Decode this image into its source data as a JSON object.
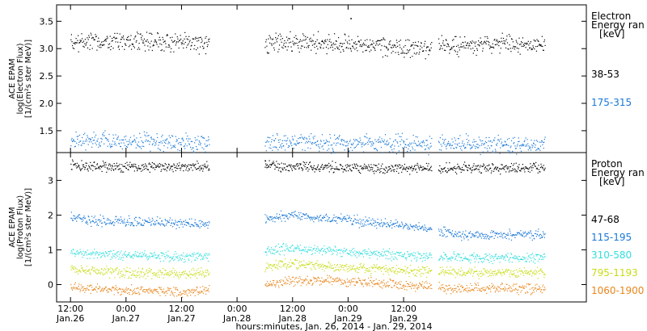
{
  "chart_data": [
    {
      "type": "scatter",
      "panel": "electron",
      "ylabel_lines": [
        "ACE EPAM",
        "log(Electron Flux)",
        "[1/(cm²s ster MeV)]"
      ],
      "ylim": [
        1.1,
        3.8
      ],
      "yticks": [
        1.5,
        2.0,
        2.5,
        3.0,
        3.5
      ],
      "ytick_labels": [
        "1.5",
        "2.0",
        "2.5",
        "3.0",
        "3.5"
      ],
      "legend_title": [
        "Electron",
        "Energy ran",
        "[keV]"
      ],
      "series": [
        {
          "name": "38-53",
          "color": "#000000",
          "x_hours": [
            0,
            6,
            12,
            18,
            24,
            30,
            36,
            42,
            48,
            54,
            60,
            66,
            72,
            78,
            84
          ],
          "segments": [
            [
              0,
              30
            ],
            [
              42,
              78
            ],
            [
              79.5,
              102.5
            ]
          ],
          "y": [
            3.12,
            3.13,
            3.14,
            3.13,
            3.12,
            3.11,
            3.1,
            3.11,
            3.12,
            3.11,
            3.1,
            3.06,
            3.0,
            3.04,
            3.07
          ],
          "outliers": [
            [
              60.5,
              3.56
            ]
          ]
        },
        {
          "name": "175-315",
          "color": "#1a78d6",
          "x_hours": [
            0,
            12,
            24,
            36,
            48,
            60,
            72,
            84
          ],
          "segments": [
            [
              0,
              30
            ],
            [
              42,
              78
            ],
            [
              79.5,
              102.5
            ]
          ],
          "y": [
            1.33,
            1.3,
            1.29,
            1.28,
            1.29,
            1.27,
            1.26,
            1.26
          ],
          "outliers": []
        }
      ]
    },
    {
      "type": "scatter",
      "panel": "proton",
      "ylabel_lines": [
        "ACE EPAM",
        "log(Proton Flux)",
        "[1/(cm²s ster MeV)]"
      ],
      "ylim": [
        -0.5,
        3.8
      ],
      "yticks": [
        0,
        1,
        2,
        3
      ],
      "ytick_labels": [
        "0",
        "1",
        "2",
        "3"
      ],
      "legend_title": [
        "Proton",
        "Energy ran",
        "[keV]"
      ],
      "series": [
        {
          "name": "47-68",
          "color": "#000000",
          "x_hours": [
            0,
            12,
            24,
            36,
            48,
            60,
            72,
            84
          ],
          "segments": [
            [
              0,
              30
            ],
            [
              42,
              78
            ],
            [
              79.5,
              102.5
            ]
          ],
          "y": [
            3.42,
            3.4,
            3.39,
            3.4,
            3.41,
            3.38,
            3.35,
            3.36
          ],
          "outliers": [
            [
              42,
              3.58
            ]
          ]
        },
        {
          "name": "115-195",
          "color": "#1a78d6",
          "x_hours": [
            0,
            6,
            12,
            18,
            24,
            30,
            36,
            42,
            48,
            54,
            60,
            66,
            72,
            78,
            84
          ],
          "segments": [
            [
              0,
              30
            ],
            [
              42,
              78
            ],
            [
              79.5,
              102.5
            ]
          ],
          "y": [
            1.95,
            1.85,
            1.8,
            1.82,
            1.78,
            1.75,
            1.78,
            1.9,
            2.0,
            1.92,
            1.85,
            1.8,
            1.7,
            1.58,
            1.45
          ],
          "outliers": []
        },
        {
          "name": "310-580",
          "color": "#33dede",
          "x_hours": [
            0,
            12,
            24,
            36,
            48,
            60,
            72,
            84
          ],
          "segments": [
            [
              0,
              30
            ],
            [
              42,
              78
            ],
            [
              79.5,
              102.5
            ]
          ],
          "y": [
            0.92,
            0.85,
            0.8,
            0.9,
            1.05,
            0.95,
            0.85,
            0.78
          ],
          "outliers": []
        },
        {
          "name": "795-1193",
          "color": "#c8dc14",
          "x_hours": [
            0,
            12,
            24,
            36,
            48,
            60,
            72,
            84
          ],
          "segments": [
            [
              0,
              30
            ],
            [
              42,
              78
            ],
            [
              79.5,
              102.5
            ]
          ],
          "y": [
            0.45,
            0.35,
            0.3,
            0.45,
            0.6,
            0.5,
            0.42,
            0.35
          ],
          "outliers": []
        },
        {
          "name": "1060-1900",
          "color": "#e8861c",
          "x_hours": [
            0,
            12,
            24,
            36,
            48,
            60,
            72,
            84
          ],
          "segments": [
            [
              0,
              30
            ],
            [
              42,
              78
            ],
            [
              79.5,
              102.5
            ]
          ],
          "y": [
            -0.08,
            -0.15,
            -0.2,
            -0.05,
            0.12,
            0.1,
            0.0,
            -0.1
          ],
          "outliers": []
        }
      ]
    }
  ],
  "x_axis": {
    "unit": "hours",
    "xlim": [
      -3,
      111.5
    ],
    "ticks": [
      {
        "h": 0,
        "top": "12:00",
        "bottom": "Jan.26"
      },
      {
        "h": 12,
        "top": "0:00",
        "bottom": "Jan.27"
      },
      {
        "h": 24,
        "top": "12:00",
        "bottom": "Jan.27"
      },
      {
        "h": 36,
        "top": "0:00",
        "bottom": "Jan.28"
      },
      {
        "h": 48,
        "top": "12:00",
        "bottom": "Jan.28"
      },
      {
        "h": 60,
        "top": "0:00",
        "bottom": "Jan.29"
      },
      {
        "h": 72,
        "top": "12:00",
        "bottom": "Jan.29"
      }
    ],
    "title": "hours:minutes, Jan. 26, 2014 - Jan. 29, 2014"
  }
}
